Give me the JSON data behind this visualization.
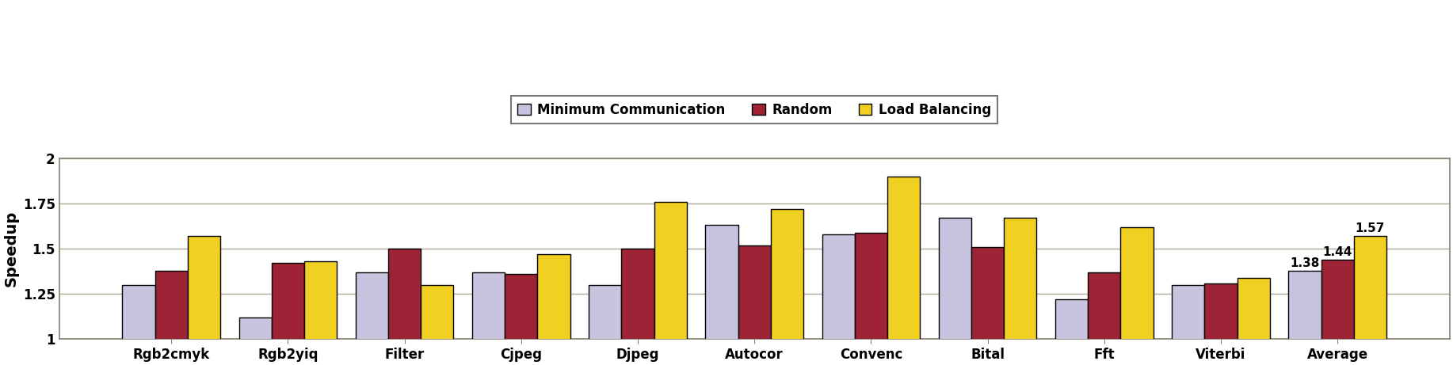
{
  "categories": [
    "Rgb2cmyk",
    "Rgb2yiq",
    "Filter",
    "Cjpeg",
    "Djpeg",
    "Autocor",
    "Convenc",
    "Bital",
    "Fft",
    "Viterbi",
    "Average"
  ],
  "min_comm": [
    1.3,
    1.12,
    1.37,
    1.37,
    1.3,
    1.63,
    1.58,
    1.67,
    1.22,
    1.3,
    1.38
  ],
  "random": [
    1.38,
    1.42,
    1.5,
    1.36,
    1.5,
    1.52,
    1.59,
    1.51,
    1.37,
    1.31,
    1.44
  ],
  "load_bal": [
    1.57,
    1.43,
    1.3,
    1.47,
    1.76,
    1.72,
    1.9,
    1.67,
    1.62,
    1.34,
    1.57
  ],
  "color_min_comm": "#c8c4e0",
  "color_random": "#9e2336",
  "color_load_bal": "#f0d020",
  "bar_edge_color": "#000000",
  "bar_edge_width": 1.0,
  "ylabel": "Speedup",
  "ylim_min": 1.0,
  "ylim_max": 2.0,
  "yticks": [
    1.0,
    1.25,
    1.5,
    1.75,
    2.0
  ],
  "ytick_labels": [
    "1",
    "1.25",
    "1.5",
    "1.75",
    "2"
  ],
  "legend_labels": [
    "Minimum Communication",
    "Random",
    "Load Balancing"
  ],
  "avg_annotations": [
    "1.38",
    "1.44",
    "1.57"
  ],
  "axis_fontsize": 14,
  "tick_fontsize": 12,
  "legend_fontsize": 12,
  "annotation_fontsize": 11,
  "bar_width": 0.28,
  "background_color": "#ffffff",
  "plot_bg_color": "#ffffff",
  "grid_color": "#b0a898",
  "grid_linewidth": 1.0,
  "spine_color": "#888070",
  "spine_linewidth": 1.2
}
